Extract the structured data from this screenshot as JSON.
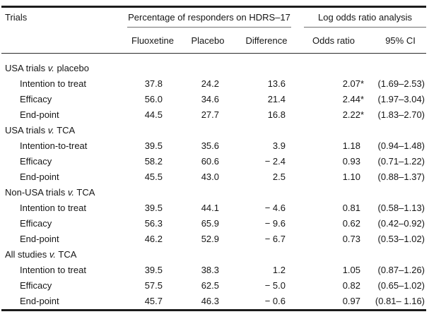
{
  "colors": {
    "text": "#161616",
    "rule_heavy": "#1c1c1c",
    "rule_light": "#6e6e6e",
    "background": "#ffffff"
  },
  "table": {
    "header": {
      "trials": "Trials",
      "group_responders": "Percentage of responders on HDRS–17",
      "group_odds": "Log odds ratio analysis",
      "col_fluoxetine": "Fluoxetine",
      "col_placebo": "Placebo",
      "col_difference": "Difference",
      "col_odds_ratio": "Odds ratio",
      "col_ci": "95% CI"
    },
    "sections": [
      {
        "title_pre": "USA trials ",
        "title_v": "v.",
        "title_post": " placebo",
        "rows": [
          {
            "label": "Intention to treat",
            "fluoxetine": "37.8",
            "placebo": "24.2",
            "difference": "13.6",
            "odds_ratio": "2.07",
            "significance": "*",
            "ci": "(1.69–2.53)"
          },
          {
            "label": "Efficacy",
            "fluoxetine": "56.0",
            "placebo": "34.6",
            "difference": "21.4",
            "odds_ratio": "2.44",
            "significance": "*",
            "ci": "(1.97–3.04)"
          },
          {
            "label": "End-point",
            "fluoxetine": "44.5",
            "placebo": "27.7",
            "difference": "16.8",
            "odds_ratio": "2.22",
            "significance": "*",
            "ci": "(1.83–2.70)"
          }
        ]
      },
      {
        "title_pre": "USA trials ",
        "title_v": "v.",
        "title_post": " TCA",
        "rows": [
          {
            "label": "Intention-to-treat",
            "fluoxetine": "39.5",
            "placebo": "35.6",
            "difference": "3.9",
            "odds_ratio": "1.18",
            "significance": "",
            "ci": "(0.94–1.48)"
          },
          {
            "label": "Efficacy",
            "fluoxetine": "58.2",
            "placebo": "60.6",
            "difference": "− 2.4",
            "odds_ratio": "0.93",
            "significance": "",
            "ci": "(0.71–1.22)"
          },
          {
            "label": "End-point",
            "fluoxetine": "45.5",
            "placebo": "43.0",
            "difference": "2.5",
            "odds_ratio": "1.10",
            "significance": "",
            "ci": "(0.88–1.37)"
          }
        ]
      },
      {
        "title_pre": "Non-USA trials ",
        "title_v": "v.",
        "title_post": " TCA",
        "rows": [
          {
            "label": "Intention to treat",
            "fluoxetine": "39.5",
            "placebo": "44.1",
            "difference": "− 4.6",
            "odds_ratio": "0.81",
            "significance": "",
            "ci": "(0.58–1.13)"
          },
          {
            "label": "Efficacy",
            "fluoxetine": "56.3",
            "placebo": "65.9",
            "difference": "− 9.6",
            "odds_ratio": "0.62",
            "significance": "",
            "ci": "(0.42–0.92)"
          },
          {
            "label": "End-point",
            "fluoxetine": "46.2",
            "placebo": "52.9",
            "difference": "− 6.7",
            "odds_ratio": "0.73",
            "significance": "",
            "ci": "(0.53–1.02)"
          }
        ]
      },
      {
        "title_pre": "All studies ",
        "title_v": "v.",
        "title_post": " TCA",
        "rows": [
          {
            "label": "Intention to treat",
            "fluoxetine": "39.5",
            "placebo": "38.3",
            "difference": "1.2",
            "odds_ratio": "1.05",
            "significance": "",
            "ci": "(0.87–1.26)"
          },
          {
            "label": "Efficacy",
            "fluoxetine": "57.5",
            "placebo": "62.5",
            "difference": "− 5.0",
            "odds_ratio": "0.82",
            "significance": "",
            "ci": "(0.65–1.02)"
          },
          {
            "label": "End-point",
            "fluoxetine": "45.7",
            "placebo": "46.3",
            "difference": "− 0.6",
            "odds_ratio": "0.97",
            "significance": "",
            "ci": "(0.81– 1.16)"
          }
        ]
      }
    ]
  }
}
